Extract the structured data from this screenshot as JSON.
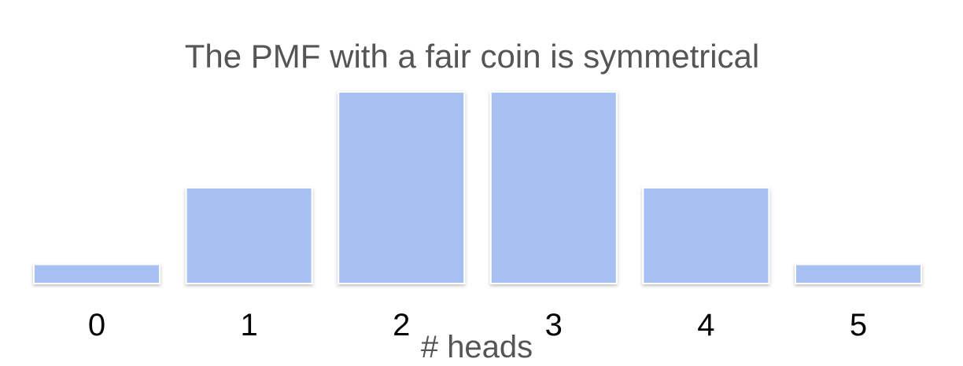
{
  "chart_data": {
    "type": "bar",
    "title": "The PMF with a fair coin is symmetrical",
    "xlabel": "# heads",
    "ylabel": "",
    "categories": [
      "0",
      "1",
      "2",
      "3",
      "4",
      "5"
    ],
    "values": [
      0.03125,
      0.15625,
      0.3125,
      0.3125,
      0.15625,
      0.03125
    ],
    "ylim": [
      0,
      0.3125
    ],
    "grid": false,
    "bar_color": "#a8c1f3"
  }
}
